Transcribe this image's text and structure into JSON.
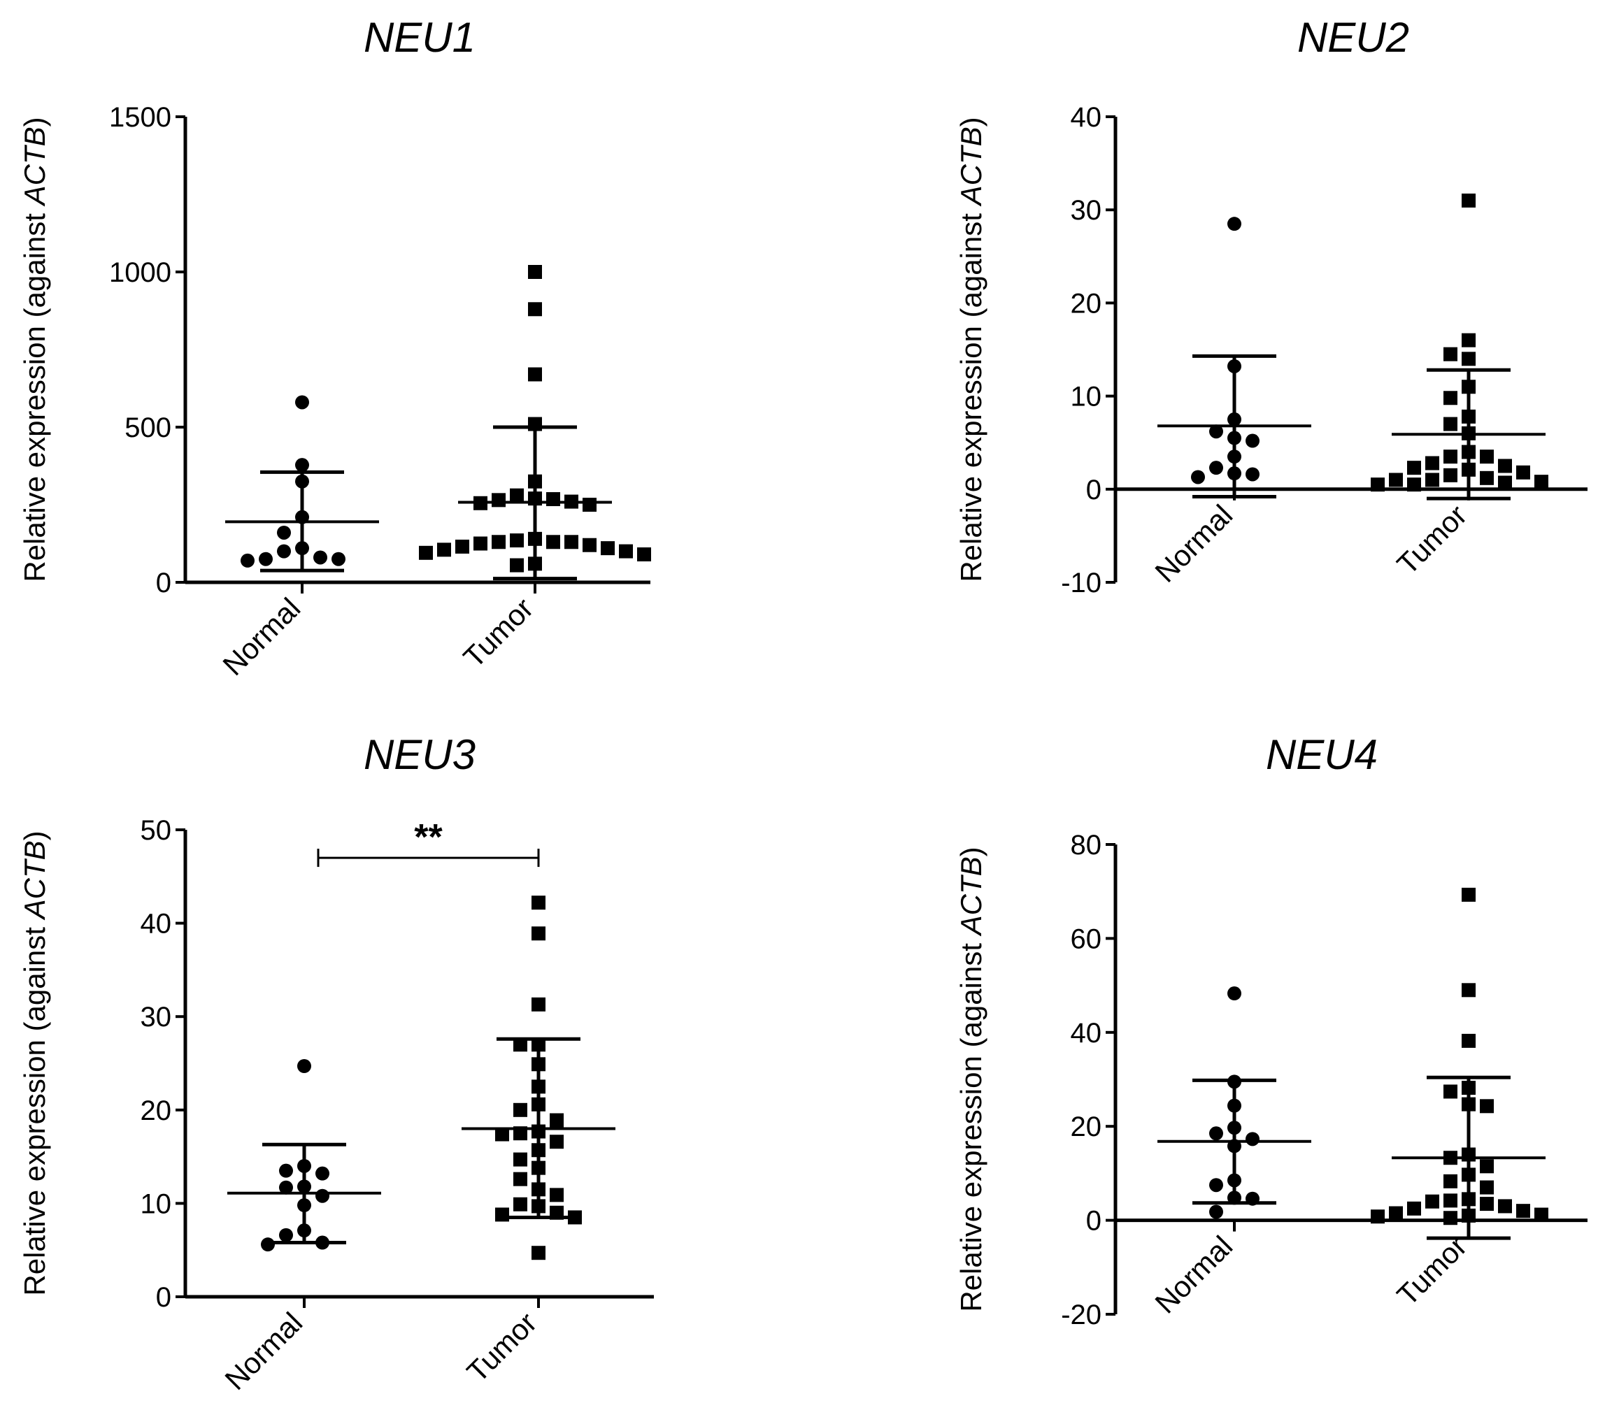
{
  "chart_data": [
    {
      "type": "scatter",
      "title": "NEU1",
      "ylabel": "Relative expression (against ",
      "ylabel_italic": "ACTB",
      "ylabel_close": ")",
      "ylim": [
        0,
        1500
      ],
      "yticks": [
        0,
        500,
        1000,
        1500
      ],
      "categories": [
        "Normal",
        "Tumor"
      ],
      "series": [
        {
          "name": "Normal",
          "marker": "circle",
          "mean": 195,
          "error_low": 38,
          "error_high": 355,
          "values": [
            580,
            378,
            325,
            210,
            160,
            110,
            100,
            80,
            75,
            75,
            70
          ]
        },
        {
          "name": "Tumor",
          "marker": "square",
          "mean": 258,
          "error_low": 12,
          "error_high": 500,
          "values": [
            1000,
            880,
            670,
            510,
            325,
            280,
            270,
            268,
            265,
            260,
            255,
            250,
            140,
            135,
            130,
            130,
            130,
            125,
            120,
            115,
            110,
            105,
            100,
            95,
            90,
            60,
            55
          ]
        }
      ],
      "annotations": []
    },
    {
      "type": "scatter",
      "title": "NEU2",
      "ylabel": "Relative expression (against ",
      "ylabel_italic": "ACTB",
      "ylabel_close": ")",
      "ylim": [
        -10,
        40
      ],
      "yticks": [
        -10,
        0,
        10,
        20,
        30,
        40
      ],
      "categories": [
        "Normal",
        "Tumor"
      ],
      "series": [
        {
          "name": "Normal",
          "marker": "circle",
          "mean": 6.8,
          "error_low": -0.8,
          "error_high": 14.3,
          "values": [
            28.5,
            13.2,
            7.5,
            6.2,
            5.5,
            5.2,
            3.5,
            2.3,
            1.7,
            1.6,
            1.3
          ]
        },
        {
          "name": "Tumor",
          "marker": "square",
          "mean": 5.9,
          "error_low": -1,
          "error_high": 12.8,
          "values": [
            31,
            16,
            14.5,
            14,
            11,
            9.8,
            7.8,
            7,
            6,
            4,
            3.5,
            3.5,
            2.8,
            2.5,
            2.3,
            2.1,
            1.8,
            1.5,
            1.2,
            1,
            1,
            0.8,
            0.7,
            0.5,
            0.5
          ]
        }
      ],
      "annotations": []
    },
    {
      "type": "scatter",
      "title": "NEU3",
      "ylabel": "Relative expression (against ",
      "ylabel_italic": "ACTB",
      "ylabel_close": ")",
      "ylim": [
        0,
        50
      ],
      "yticks": [
        0,
        10,
        20,
        30,
        40,
        50
      ],
      "categories": [
        "Normal",
        "Tumor"
      ],
      "series": [
        {
          "name": "Normal",
          "marker": "circle",
          "mean": 11.1,
          "error_low": 5.8,
          "error_high": 16.3,
          "values": [
            24.7,
            14,
            13.5,
            13.2,
            11.8,
            11.7,
            10.8,
            9.8,
            7.1,
            6.6,
            5.8,
            5.6
          ]
        },
        {
          "name": "Tumor",
          "marker": "square",
          "mean": 18,
          "error_low": 8.5,
          "error_high": 27.6,
          "values": [
            42.2,
            38.9,
            31.3,
            27,
            27,
            24.9,
            22.5,
            20.6,
            20,
            18.9,
            17.7,
            17.5,
            17.4,
            16.6,
            15.7,
            14.7,
            13.8,
            12.6,
            11.5,
            10.9,
            9.9,
            9.7,
            9,
            8.8,
            8.5,
            4.7
          ]
        }
      ],
      "annotations": [
        {
          "type": "significance_bracket",
          "from": "Normal",
          "to": "Tumor",
          "at_value": 47,
          "label": "**"
        }
      ]
    },
    {
      "type": "scatter",
      "title": "NEU4",
      "ylabel": "Relative expression (against ",
      "ylabel_italic": "ACTB",
      "ylabel_close": ")",
      "ylim": [
        -20,
        80
      ],
      "yticks": [
        -20,
        0,
        20,
        40,
        60,
        80
      ],
      "categories": [
        "Normal",
        "Tumor"
      ],
      "series": [
        {
          "name": "Normal",
          "marker": "circle",
          "mean": 16.8,
          "error_low": 3.7,
          "error_high": 29.8,
          "values": [
            48.3,
            29.5,
            24.4,
            19.7,
            18.5,
            17.3,
            15.8,
            8.5,
            7.5,
            4.8,
            4.6,
            1.8
          ]
        },
        {
          "name": "Tumor",
          "marker": "square",
          "mean": 13.3,
          "error_low": -3.8,
          "error_high": 30.4,
          "values": [
            69.3,
            49,
            38.2,
            28.2,
            27.4,
            24.7,
            24.3,
            14,
            13.3,
            11.5,
            9.7,
            8.3,
            7,
            4.5,
            4.2,
            4,
            3.5,
            3,
            2.5,
            2,
            1.5,
            1.2,
            1,
            0.8,
            0.5
          ]
        }
      ],
      "annotations": []
    }
  ]
}
